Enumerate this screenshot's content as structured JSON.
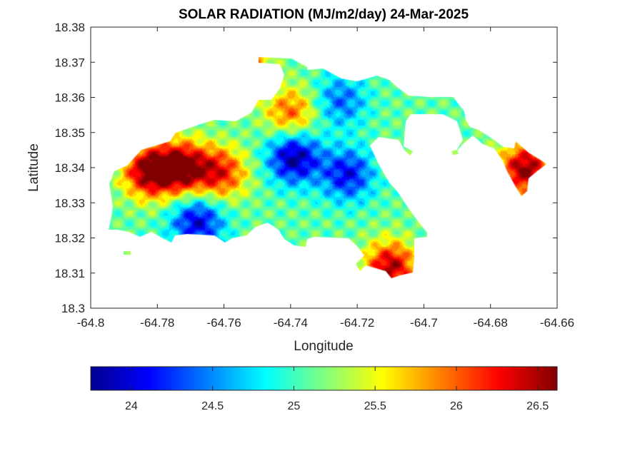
{
  "chart_data": {
    "type": "heatmap",
    "title": "SOLAR RADIATION (MJ/m2/day) 24-Mar-2025",
    "xlabel": "Longitude",
    "ylabel": "Latitude",
    "xlim": [
      -64.8,
      -64.66
    ],
    "ylim": [
      18.3,
      18.38
    ],
    "x_ticks": [
      "-64.8",
      "-64.78",
      "-64.76",
      "-64.74",
      "-64.72",
      "-64.7",
      "-64.68",
      "-64.66"
    ],
    "y_ticks": [
      "18.3",
      "18.31",
      "18.32",
      "18.33",
      "18.34",
      "18.35",
      "18.36",
      "18.37",
      "18.38"
    ],
    "colorbar": {
      "colormap": "jet",
      "orientation": "horizontal",
      "location": "below",
      "range": [
        23.75,
        26.62
      ],
      "ticks": [
        "24",
        "24.5",
        "25",
        "25.5",
        "26",
        "26.5"
      ]
    },
    "grid": false,
    "field_features": [
      {
        "feature": "maximum",
        "lon": -64.7825,
        "lat": 18.339,
        "value": 26.6
      },
      {
        "feature": "maximum",
        "lon": -64.7725,
        "lat": 18.34,
        "value": 26.6
      },
      {
        "feature": "maximum",
        "lon": -64.761,
        "lat": 18.3385,
        "value": 26.2
      },
      {
        "feature": "maximum",
        "lon": -64.74,
        "lat": 18.3555,
        "value": 26.0
      },
      {
        "feature": "maximum",
        "lon": -64.71,
        "lat": 18.3115,
        "value": 26.5
      },
      {
        "feature": "maximum",
        "lon": -64.6695,
        "lat": 18.3395,
        "value": 26.6
      },
      {
        "feature": "maximum",
        "lon": -64.7555,
        "lat": 18.37,
        "value": 26.4
      },
      {
        "feature": "minimum",
        "lon": -64.739,
        "lat": 18.343,
        "value": 23.8
      },
      {
        "feature": "minimum",
        "lon": -64.723,
        "lat": 18.338,
        "value": 24.1
      },
      {
        "feature": "minimum",
        "lon": -64.768,
        "lat": 18.3245,
        "value": 24.0
      },
      {
        "feature": "minimum",
        "lon": -64.725,
        "lat": 18.359,
        "value": 24.4
      }
    ]
  }
}
